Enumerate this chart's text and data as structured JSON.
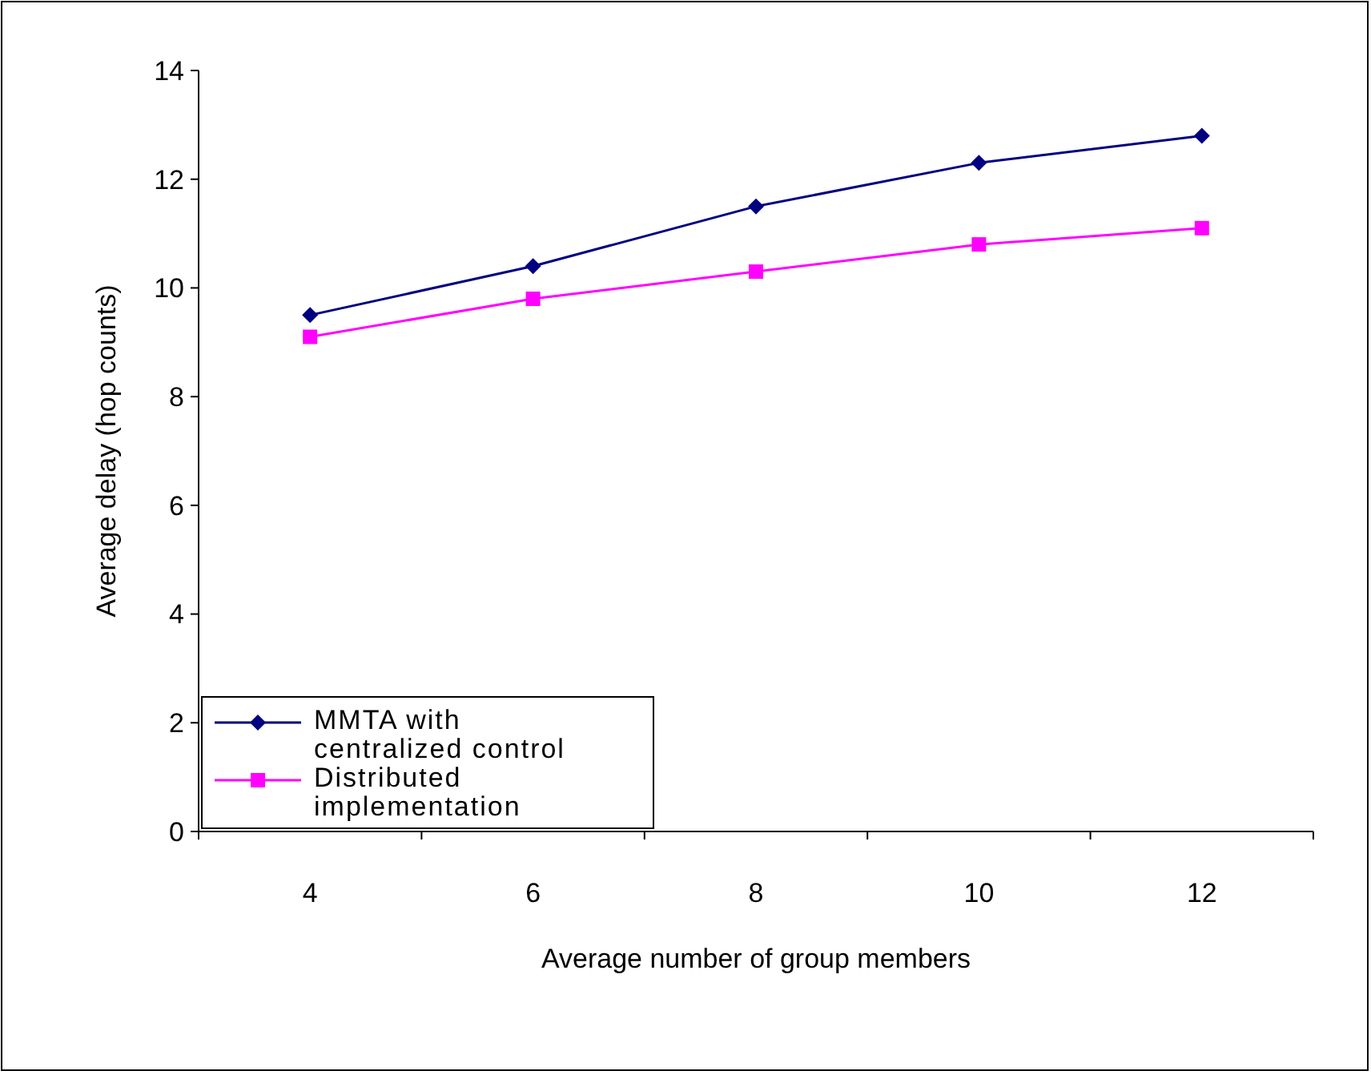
{
  "chart_data": {
    "type": "line",
    "xlabel": "Average number of group members",
    "ylabel": "Average delay (hop counts)",
    "categories": [
      "4",
      "6",
      "8",
      "10",
      "12"
    ],
    "series": [
      {
        "name": "MMTA with\ncentralized control",
        "color": "#000080",
        "marker": "diamond",
        "values": [
          9.5,
          10.4,
          11.5,
          12.3,
          12.8
        ]
      },
      {
        "name": "Distributed\nimplementation",
        "color": "#ff00ff",
        "marker": "square",
        "values": [
          9.1,
          9.8,
          10.3,
          10.8,
          11.1
        ]
      }
    ],
    "ylim": [
      0,
      14
    ],
    "yticks": [
      0,
      2,
      4,
      6,
      8,
      10,
      12,
      14
    ],
    "grid": false,
    "legend": "bottom left",
    "line_style": "solid"
  }
}
